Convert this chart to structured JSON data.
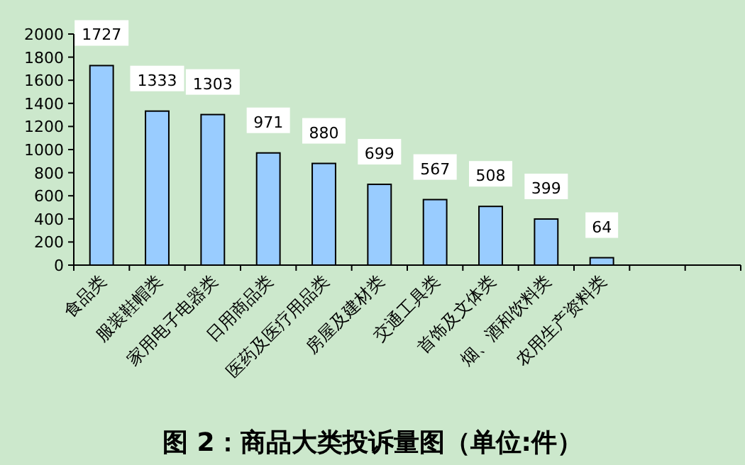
{
  "chart_data": {
    "type": "bar",
    "title": "图 2：商品大类投诉量图（单位:件）",
    "categories": [
      "食品类",
      "服装鞋帽类",
      "家用电子电器类",
      "日用商品类",
      "医药及医疗用品类",
      "房屋及建材类",
      "交通工具类",
      "首饰及文体类",
      "烟、酒和饮料类",
      "农用生产资料类",
      null,
      null
    ],
    "values": [
      1727,
      1333,
      1303,
      971,
      880,
      699,
      567,
      508,
      399,
      64,
      null,
      null
    ],
    "color": "#99ccff",
    "ylim": [
      0,
      2000
    ],
    "yticks": [
      0,
      200,
      400,
      600,
      800,
      1000,
      1200,
      1400,
      1600,
      1800,
      2000
    ],
    "data_labels": true,
    "grid": false
  }
}
